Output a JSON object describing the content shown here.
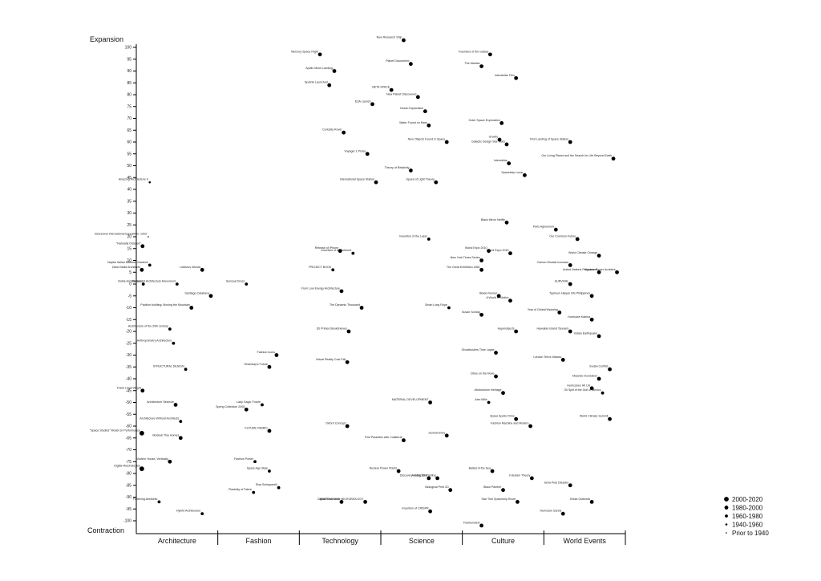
{
  "chart_data": {
    "type": "scatter",
    "ylabel_top": "Expansion",
    "ylabel_bottom": "Contraction",
    "ylim": [
      -105,
      105
    ],
    "yticks": [
      100,
      95,
      90,
      85,
      80,
      75,
      70,
      65,
      60,
      55,
      50,
      45,
      40,
      35,
      30,
      25,
      20,
      15,
      10,
      5,
      0,
      -5,
      -10,
      -15,
      -20,
      -25,
      -30,
      -35,
      -40,
      -45,
      -50,
      -55,
      -60,
      -65,
      -70,
      -75,
      -80,
      -85,
      -90,
      -95,
      -100
    ],
    "categories": [
      "Architecture",
      "Fashion",
      "Technology",
      "Science",
      "Culture",
      "World Events"
    ],
    "legend": [
      {
        "label": "2000-2020",
        "size": "xl"
      },
      {
        "label": "1980-2000",
        "size": "l"
      },
      {
        "label": "1960-1980",
        "size": "m"
      },
      {
        "label": "1940-1960",
        "size": "s"
      },
      {
        "label": "Prior to 1940",
        "size": "xs"
      }
    ],
    "points": [
      {
        "cat": 0,
        "x": 0.12,
        "y": 43,
        "era": "s",
        "label": "Amazing Architecture 4"
      },
      {
        "cat": 0,
        "x": 0.1,
        "y": 20,
        "era": "xs",
        "label": "Barcelona International Exposition, 1929"
      },
      {
        "cat": 0,
        "x": 0.02,
        "y": 16,
        "era": "l",
        "label": "\"Naturally Dictated\""
      },
      {
        "cat": 0,
        "x": 0.12,
        "y": 8,
        "era": "m",
        "label": "Naples Italian National Gardens"
      },
      {
        "cat": 0,
        "x": 0.01,
        "y": 6,
        "era": "l",
        "label": "Zaha Hadid Architects"
      },
      {
        "cat": 0,
        "x": 0.03,
        "y": 0,
        "era": "m",
        "label": "Noble Architecture"
      },
      {
        "cat": 0,
        "x": 0.5,
        "y": 0,
        "era": "m",
        "label": "Metabolist Architecture Movement"
      },
      {
        "cat": 0,
        "x": 0.85,
        "y": 6,
        "era": "l",
        "label": "Lebbeus Woods"
      },
      {
        "cat": 0,
        "x": 0.97,
        "y": -5,
        "era": "l",
        "label": "Santiago Calatrava"
      },
      {
        "cat": 0,
        "x": 0.7,
        "y": -10,
        "era": "l",
        "label": "Pavilion building: Moving the Mountain"
      },
      {
        "cat": 0,
        "x": 0.4,
        "y": -19,
        "era": "m",
        "label": "Architecture of the 20th century"
      },
      {
        "cat": 0,
        "x": 0.45,
        "y": -25,
        "era": "m",
        "label": "Anthropometry Architecture"
      },
      {
        "cat": 0,
        "x": 0.62,
        "y": -36,
        "era": "m",
        "label": "STRUCTURAL DESIGN"
      },
      {
        "cat": 0,
        "x": 0.02,
        "y": -45,
        "era": "l",
        "label": "Frank Lloyd Wright"
      },
      {
        "cat": 0,
        "x": 0.48,
        "y": -51,
        "era": "l",
        "label": "Architecture Sinkhole"
      },
      {
        "cat": 0,
        "x": 0.55,
        "y": -58,
        "era": "m",
        "label": "Architecture Without Architects"
      },
      {
        "cat": 0,
        "x": 0.01,
        "y": -63,
        "era": "xl",
        "label": "\"Space Studies\" Model on Performance"
      },
      {
        "cat": 0,
        "x": 0.55,
        "y": -65,
        "era": "l",
        "label": "Modular Tiny Homes"
      },
      {
        "cat": 0,
        "x": 0.01,
        "y": -78,
        "era": "xl",
        "label": "Digital Morphologies"
      },
      {
        "cat": 0,
        "x": 0.4,
        "y": -75,
        "era": "l",
        "label": "Modern House, Vertically"
      },
      {
        "cat": 0,
        "x": 0.25,
        "y": -92,
        "era": "m",
        "label": "Fluttering Aesthetic"
      },
      {
        "cat": 0,
        "x": 0.85,
        "y": -97,
        "era": "m",
        "label": "Hybrid Architecture"
      },
      {
        "cat": 1,
        "x": 0.33,
        "y": 0,
        "era": "m",
        "label": "Sensual Dress"
      },
      {
        "cat": 1,
        "x": 0.65,
        "y": -35,
        "era": "l",
        "label": "Yesterday's Future"
      },
      {
        "cat": 1,
        "x": 0.75,
        "y": -30,
        "era": "l",
        "label": "Fashion Icons"
      },
      {
        "cat": 1,
        "x": 0.33,
        "y": -53,
        "era": "l",
        "label": "Spring Collection 2005"
      },
      {
        "cat": 1,
        "x": 0.55,
        "y": -51,
        "era": "m",
        "label": "Lady Gaga: Future"
      },
      {
        "cat": 1,
        "x": 0.65,
        "y": -62,
        "era": "l",
        "label": "FUTURE FABRIC"
      },
      {
        "cat": 1,
        "x": 0.45,
        "y": -75,
        "era": "m",
        "label": "Fashion Power"
      },
      {
        "cat": 1,
        "x": 0.65,
        "y": -79,
        "era": "m",
        "label": "Space Age Style"
      },
      {
        "cat": 1,
        "x": 0.43,
        "y": -88,
        "era": "m",
        "label": "Plasticity of Fabric"
      },
      {
        "cat": 1,
        "x": 0.78,
        "y": -86,
        "era": "m",
        "label": "Elsa Schiaparelli"
      },
      {
        "cat": 2,
        "x": 0.22,
        "y": 97,
        "era": "l",
        "label": "Mercury Space Flight"
      },
      {
        "cat": 2,
        "x": 0.35,
        "y": 84,
        "era": "l",
        "label": "Sputnik Launched"
      },
      {
        "cat": 2,
        "x": 0.42,
        "y": 90,
        "era": "l",
        "label": "Apollo Moon Landing"
      },
      {
        "cat": 2,
        "x": 0.95,
        "y": 76,
        "era": "l",
        "label": "ESA Launch"
      },
      {
        "cat": 2,
        "x": 0.55,
        "y": 64,
        "era": "l",
        "label": "Curiosity Rover"
      },
      {
        "cat": 2,
        "x": 0.88,
        "y": 55,
        "era": "l",
        "label": "Voyager 1 Probe"
      },
      {
        "cat": 2,
        "x": 1.0,
        "y": 43,
        "era": "l",
        "label": "International Space Station"
      },
      {
        "cat": 2,
        "x": 0.5,
        "y": 14,
        "era": "l",
        "label": "Release of iPhone"
      },
      {
        "cat": 2,
        "x": 0.68,
        "y": 13,
        "era": "m",
        "label": "Invention of the Internet"
      },
      {
        "cat": 2,
        "x": 0.4,
        "y": 6,
        "era": "m",
        "label": "PROJECT BOOK"
      },
      {
        "cat": 2,
        "x": 0.52,
        "y": -3,
        "era": "l",
        "label": "From Low Energy Architecture"
      },
      {
        "cat": 2,
        "x": 0.8,
        "y": -10,
        "era": "l",
        "label": "The Dynamic Thousand"
      },
      {
        "cat": 2,
        "x": 0.62,
        "y": -20,
        "era": "l",
        "label": "3D Printed Bookshelves"
      },
      {
        "cat": 2,
        "x": 0.6,
        "y": -33,
        "era": "l",
        "label": "Virtual Reality Cost Fall"
      },
      {
        "cat": 2,
        "x": 0.6,
        "y": -60,
        "era": "l",
        "label": "Oxford Concept"
      },
      {
        "cat": 2,
        "x": 0.52,
        "y": -92,
        "era": "l",
        "label": "Digital Revolution"
      },
      {
        "cat": 2,
        "x": 0.85,
        "y": -92,
        "era": "l",
        "label": "ANATOMY AND MICROBIOLOGY"
      },
      {
        "cat": 3,
        "x": 0.25,
        "y": 103,
        "era": "l",
        "label": "New Research Ship"
      },
      {
        "cat": 3,
        "x": 0.35,
        "y": 93,
        "era": "l",
        "label": "Planet Discovered"
      },
      {
        "cat": 3,
        "x": 0.08,
        "y": 82,
        "era": "l",
        "label": "BETA SPACE"
      },
      {
        "cat": 3,
        "x": 0.45,
        "y": 79,
        "era": "l",
        "label": "New Planet Discovered"
      },
      {
        "cat": 3,
        "x": 0.55,
        "y": 73,
        "era": "l",
        "label": "Ocean Exploration"
      },
      {
        "cat": 3,
        "x": 0.6,
        "y": 67,
        "era": "l",
        "label": "Water Found on Mars"
      },
      {
        "cat": 3,
        "x": 0.85,
        "y": 60,
        "era": "l",
        "label": "New Objects Found in Space"
      },
      {
        "cat": 3,
        "x": 0.35,
        "y": 48,
        "era": "l",
        "label": "Theory of Relativity"
      },
      {
        "cat": 3,
        "x": 0.7,
        "y": 43,
        "era": "l",
        "label": "Speed of Light Theory"
      },
      {
        "cat": 3,
        "x": 0.6,
        "y": 19,
        "era": "m",
        "label": "Invention of the Laser"
      },
      {
        "cat": 3,
        "x": 0.88,
        "y": -10,
        "era": "m",
        "label": "Sinan Long Rope"
      },
      {
        "cat": 3,
        "x": 0.62,
        "y": -50,
        "era": "l",
        "label": "MATERIAL DEVELOPMENT"
      },
      {
        "cat": 3,
        "x": 0.25,
        "y": -66,
        "era": "l",
        "label": "First Parasites with Collateral"
      },
      {
        "cat": 3,
        "x": 0.85,
        "y": -64,
        "era": "l",
        "label": "Journal Entry"
      },
      {
        "cat": 3,
        "x": 0.18,
        "y": -79,
        "era": "l",
        "label": "Nuclear Power Plants"
      },
      {
        "cat": 3,
        "x": 0.6,
        "y": -82,
        "era": "l",
        "label": "Discovery of Bacteria"
      },
      {
        "cat": 3,
        "x": 0.72,
        "y": -82,
        "era": "l",
        "label": "Analog 3D Printing"
      },
      {
        "cat": 3,
        "x": 0.9,
        "y": -87,
        "era": "l",
        "label": "Biological Print 2D"
      },
      {
        "cat": 3,
        "x": 0.62,
        "y": -96,
        "era": "l",
        "label": "Invention of CRISPR"
      },
      {
        "cat": 4,
        "x": 0.32,
        "y": 97,
        "era": "l",
        "label": "Founders of the Galaxy"
      },
      {
        "cat": 4,
        "x": 0.2,
        "y": 92,
        "era": "l",
        "label": "The Martian"
      },
      {
        "cat": 4,
        "x": 0.68,
        "y": 87,
        "era": "l",
        "label": "Interstellar Film"
      },
      {
        "cat": 4,
        "x": 0.48,
        "y": 68,
        "era": "l",
        "label": "Outer Space Exploration"
      },
      {
        "cat": 4,
        "x": 0.45,
        "y": 61,
        "era": "l",
        "label": "Gravity"
      },
      {
        "cat": 4,
        "x": 0.55,
        "y": 59,
        "era": "l",
        "label": "Galactic Design Star Wars"
      },
      {
        "cat": 4,
        "x": 0.58,
        "y": 51,
        "era": "l",
        "label": "Interstellar"
      },
      {
        "cat": 4,
        "x": 0.8,
        "y": 46,
        "era": "l",
        "label": "Spaceship Lunar"
      },
      {
        "cat": 4,
        "x": 0.55,
        "y": 26,
        "era": "l",
        "label": "Black Mirror Netflix"
      },
      {
        "cat": 4,
        "x": 0.3,
        "y": 14,
        "era": "l",
        "label": "World Expo 2010"
      },
      {
        "cat": 4,
        "x": 0.6,
        "y": 13,
        "era": "l",
        "label": "World Expo 2015"
      },
      {
        "cat": 4,
        "x": 0.2,
        "y": 10,
        "era": "l",
        "label": "New York Times Series"
      },
      {
        "cat": 4,
        "x": 0.2,
        "y": 6,
        "era": "l",
        "label": "The Great Exhibition 1851"
      },
      {
        "cat": 4,
        "x": 0.44,
        "y": -5,
        "era": "l",
        "label": "Blade Runner"
      },
      {
        "cat": 4,
        "x": 0.6,
        "y": -7,
        "era": "l",
        "label": "A World in Motion"
      },
      {
        "cat": 4,
        "x": 0.2,
        "y": -13,
        "era": "l",
        "label": "Susan Sontag"
      },
      {
        "cat": 4,
        "x": 0.68,
        "y": -20,
        "era": "l",
        "label": "Hyperobjects"
      },
      {
        "cat": 4,
        "x": 0.4,
        "y": -29,
        "era": "l",
        "label": "Ghostbusters Time Lapse"
      },
      {
        "cat": 4,
        "x": 0.4,
        "y": -39,
        "era": "l",
        "label": "Cities on the Move"
      },
      {
        "cat": 4,
        "x": 0.5,
        "y": -46,
        "era": "l",
        "label": "Afrofuturism Heritage"
      },
      {
        "cat": 4,
        "x": 0.3,
        "y": -50,
        "era": "m",
        "label": "Alex Mills"
      },
      {
        "cat": 4,
        "x": 0.68,
        "y": -57,
        "era": "l",
        "label": "Space Apollo Films"
      },
      {
        "cat": 4,
        "x": 0.88,
        "y": -60,
        "era": "l",
        "label": "Fashion Machine and Modern"
      },
      {
        "cat": 4,
        "x": 0.35,
        "y": -79,
        "era": "l",
        "label": "Ballad of the Sea"
      },
      {
        "cat": 4,
        "x": 0.9,
        "y": -82,
        "era": "l",
        "label": "Futurism Theory"
      },
      {
        "cat": 4,
        "x": 0.5,
        "y": -87,
        "era": "l",
        "label": "Black Panther"
      },
      {
        "cat": 4,
        "x": 0.7,
        "y": -92,
        "era": "l",
        "label": "Star Trek Spaceship Rover"
      },
      {
        "cat": 4,
        "x": 0.2,
        "y": -102,
        "era": "l",
        "label": "Frankenstein"
      },
      {
        "cat": 5,
        "x": 0.3,
        "y": 60,
        "era": "l",
        "label": "First Landing of Space Station"
      },
      {
        "cat": 5,
        "x": 0.9,
        "y": 53,
        "era": "l",
        "label": "Our Living Planet and the Search for Life Beyond Earth"
      },
      {
        "cat": 5,
        "x": 0.1,
        "y": 23,
        "era": "l",
        "label": "Paris Agreement"
      },
      {
        "cat": 5,
        "x": 0.4,
        "y": 19,
        "era": "l",
        "label": "Our Common Future"
      },
      {
        "cat": 5,
        "x": 0.7,
        "y": 12,
        "era": "l",
        "label": "World Climate Change"
      },
      {
        "cat": 5,
        "x": 0.3,
        "y": 8,
        "era": "l",
        "label": "Carbon Dioxide Increase"
      },
      {
        "cat": 5,
        "x": 0.7,
        "y": 5,
        "era": "l",
        "label": "United Nations Programme"
      },
      {
        "cat": 5,
        "x": 0.95,
        "y": 5,
        "era": "l",
        "label": "Nuclear Power Accident"
      },
      {
        "cat": 5,
        "x": 0.3,
        "y": 0,
        "era": "l",
        "label": "SURVIVAL"
      },
      {
        "cat": 5,
        "x": 0.6,
        "y": -5,
        "era": "l",
        "label": "Typhoon Haiyan hits Philippines"
      },
      {
        "cat": 5,
        "x": 0.15,
        "y": -12,
        "era": "l",
        "label": "Year of Global Warming"
      },
      {
        "cat": 5,
        "x": 0.6,
        "y": -15,
        "era": "l",
        "label": "Hurricane Katrina"
      },
      {
        "cat": 5,
        "x": 0.3,
        "y": -20,
        "era": "l",
        "label": "Hawaiian Island Tsunami"
      },
      {
        "cat": 5,
        "x": 0.7,
        "y": -22,
        "era": "l",
        "label": "Indian Earthquake"
      },
      {
        "cat": 5,
        "x": 0.2,
        "y": -32,
        "era": "l",
        "label": "London Terror Attacks"
      },
      {
        "cat": 5,
        "x": 0.85,
        "y": -36,
        "era": "l",
        "label": "Sudan Conflict"
      },
      {
        "cat": 5,
        "x": 0.7,
        "y": -40,
        "era": "l",
        "label": "Massive Inundation"
      },
      {
        "cat": 5,
        "x": 0.6,
        "y": -44,
        "era": "l",
        "label": "Hurricanes Hit US"
      },
      {
        "cat": 5,
        "x": 0.75,
        "y": -46,
        "era": "m",
        "label": "Oil Spill of the Gulf of Mexico"
      },
      {
        "cat": 5,
        "x": 0.85,
        "y": -57,
        "era": "l",
        "label": "World Climate Summit"
      },
      {
        "cat": 5,
        "x": 0.3,
        "y": -85,
        "era": "l",
        "label": "Sena Pulp Disaster"
      },
      {
        "cat": 5,
        "x": 0.6,
        "y": -92,
        "era": "l",
        "label": "Ebola Outbreak"
      },
      {
        "cat": 5,
        "x": 0.2,
        "y": -97,
        "era": "l",
        "label": "Hurricane Sandy"
      }
    ]
  }
}
